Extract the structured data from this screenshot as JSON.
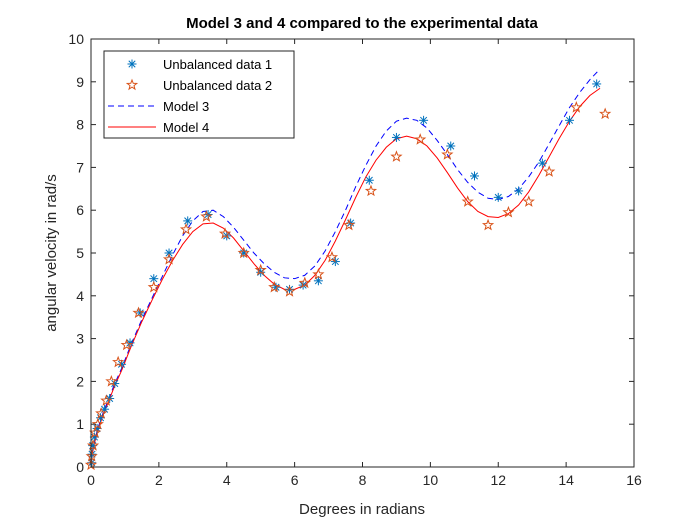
{
  "chart_data": {
    "type": "line",
    "title": "Model 3 and 4 compared to the experimental data",
    "xlabel": "Degrees in radians",
    "ylabel": "angular velocity in rad/s",
    "xlim": [
      0,
      16
    ],
    "ylim": [
      0,
      10
    ],
    "xticks": [
      0,
      2,
      4,
      6,
      8,
      10,
      12,
      14,
      16
    ],
    "yticks": [
      0,
      1,
      2,
      3,
      4,
      5,
      6,
      7,
      8,
      9,
      10
    ],
    "grid": false,
    "legend_position": "top-left",
    "series": [
      {
        "name": "Unbalanced data 1",
        "kind": "scatter",
        "marker": "asterisk",
        "color": "#0072bd",
        "x": [
          0.02,
          0.03,
          0.05,
          0.1,
          0.18,
          0.28,
          0.4,
          0.55,
          0.7,
          0.9,
          1.15,
          1.45,
          1.85,
          2.3,
          2.85,
          3.45,
          4.0,
          4.5,
          5.0,
          5.45,
          5.85,
          6.25,
          6.7,
          7.2,
          7.65,
          8.2,
          9.0,
          9.8,
          10.6,
          11.3,
          12.0,
          12.6,
          13.3,
          14.1,
          14.9
        ],
        "y": [
          0.1,
          0.3,
          0.5,
          0.7,
          0.9,
          1.15,
          1.35,
          1.6,
          1.95,
          2.4,
          2.9,
          3.6,
          4.4,
          5.0,
          5.75,
          5.9,
          5.4,
          5.0,
          4.55,
          4.2,
          4.15,
          4.25,
          4.35,
          4.8,
          5.7,
          6.7,
          7.7,
          8.1,
          7.5,
          6.8,
          6.3,
          6.45,
          7.1,
          8.1,
          8.95
        ]
      },
      {
        "name": "Unbalanced data 2",
        "kind": "scatter",
        "marker": "pentagram",
        "color": "#d95319",
        "x": [
          0.0,
          0.02,
          0.06,
          0.12,
          0.2,
          0.3,
          0.45,
          0.6,
          0.8,
          1.05,
          1.4,
          1.85,
          2.3,
          2.8,
          3.4,
          3.95,
          4.5,
          5.0,
          5.4,
          5.85,
          6.3,
          6.7,
          7.1,
          7.6,
          8.25,
          9.0,
          9.7,
          10.5,
          11.1,
          11.7,
          12.3,
          12.9,
          13.5,
          14.3,
          15.15
        ],
        "y": [
          0.05,
          0.25,
          0.5,
          0.8,
          1.0,
          1.25,
          1.55,
          2.0,
          2.45,
          2.85,
          3.6,
          4.2,
          4.85,
          5.55,
          5.85,
          5.45,
          5.0,
          4.6,
          4.2,
          4.1,
          4.3,
          4.5,
          4.9,
          5.65,
          6.45,
          7.25,
          7.65,
          7.3,
          6.2,
          5.65,
          5.95,
          6.2,
          6.9,
          8.4,
          8.25
        ]
      },
      {
        "name": "Model 3",
        "kind": "line",
        "style": "dashed",
        "color": "#0000ff",
        "x": [
          0,
          0.05,
          0.1,
          0.2,
          0.35,
          0.5,
          0.7,
          0.9,
          1.2,
          1.5,
          1.8,
          2.1,
          2.4,
          2.7,
          3.0,
          3.3,
          3.6,
          3.9,
          4.2,
          4.5,
          4.8,
          5.1,
          5.4,
          5.7,
          6.0,
          6.3,
          6.6,
          6.9,
          7.2,
          7.5,
          7.8,
          8.1,
          8.4,
          8.7,
          9.0,
          9.3,
          9.6,
          9.9,
          10.2,
          10.5,
          10.8,
          11.1,
          11.4,
          11.7,
          12.0,
          12.3,
          12.6,
          12.9,
          13.2,
          13.5,
          13.8,
          14.1,
          14.4,
          14.7,
          15.0
        ],
        "y": [
          0.0,
          0.4,
          0.6,
          0.9,
          1.25,
          1.55,
          1.95,
          2.3,
          2.9,
          3.45,
          3.95,
          4.45,
          4.95,
          5.4,
          5.75,
          5.97,
          6.0,
          5.85,
          5.6,
          5.3,
          5.0,
          4.75,
          4.55,
          4.42,
          4.4,
          4.48,
          4.7,
          5.05,
          5.5,
          6.0,
          6.55,
          7.05,
          7.5,
          7.85,
          8.08,
          8.15,
          8.1,
          7.92,
          7.63,
          7.3,
          6.95,
          6.65,
          6.42,
          6.28,
          6.25,
          6.32,
          6.5,
          6.78,
          7.13,
          7.55,
          7.98,
          8.4,
          8.75,
          9.05,
          9.3
        ]
      },
      {
        "name": "Model 4",
        "kind": "line",
        "style": "solid",
        "color": "#ff0000",
        "x": [
          0,
          0.05,
          0.1,
          0.2,
          0.35,
          0.5,
          0.7,
          0.9,
          1.2,
          1.5,
          1.8,
          2.1,
          2.4,
          2.7,
          3.0,
          3.3,
          3.6,
          3.9,
          4.2,
          4.5,
          4.8,
          5.1,
          5.4,
          5.7,
          6.0,
          6.3,
          6.6,
          6.9,
          7.2,
          7.5,
          7.8,
          8.1,
          8.4,
          8.7,
          9.0,
          9.3,
          9.6,
          9.9,
          10.2,
          10.5,
          10.8,
          11.1,
          11.4,
          11.7,
          12.0,
          12.3,
          12.6,
          12.9,
          13.2,
          13.5,
          13.8,
          14.1,
          14.4,
          14.7,
          15.0
        ],
        "y": [
          0.0,
          0.35,
          0.55,
          0.85,
          1.2,
          1.5,
          1.9,
          2.25,
          2.85,
          3.4,
          3.9,
          4.38,
          4.82,
          5.2,
          5.5,
          5.68,
          5.7,
          5.58,
          5.35,
          5.05,
          4.75,
          4.48,
          4.27,
          4.15,
          4.15,
          4.25,
          4.48,
          4.83,
          5.28,
          5.78,
          6.3,
          6.78,
          7.17,
          7.47,
          7.67,
          7.73,
          7.67,
          7.5,
          7.22,
          6.88,
          6.52,
          6.2,
          5.97,
          5.85,
          5.83,
          5.92,
          6.12,
          6.43,
          6.82,
          7.25,
          7.68,
          8.08,
          8.42,
          8.68,
          8.85
        ]
      }
    ]
  }
}
